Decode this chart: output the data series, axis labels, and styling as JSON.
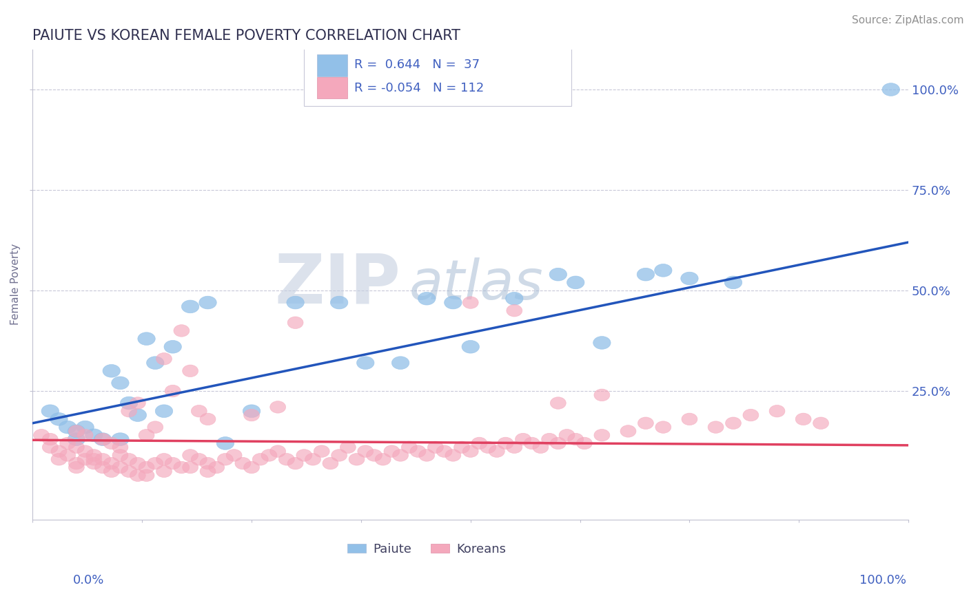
{
  "title": "PAIUTE VS KOREAN FEMALE POVERTY CORRELATION CHART",
  "source": "Source: ZipAtlas.com",
  "ylabel": "Female Poverty",
  "y_tick_labels": [
    "25.0%",
    "50.0%",
    "75.0%",
    "100.0%"
  ],
  "y_tick_values": [
    0.25,
    0.5,
    0.75,
    1.0
  ],
  "xlim": [
    0.0,
    1.0
  ],
  "ylim": [
    -0.07,
    1.1
  ],
  "paiute_R": 0.644,
  "paiute_N": 37,
  "korean_R": -0.054,
  "korean_N": 112,
  "paiute_color": "#92c0e8",
  "korean_color": "#f4a8bc",
  "paiute_line_color": "#2255bb",
  "korean_line_color": "#e04060",
  "background_color": "#ffffff",
  "grid_color": "#c8c8d8",
  "title_color": "#303050",
  "axis_text_color": "#4060c0",
  "watermark_zip_color": "#c0c8e0",
  "watermark_atlas_color": "#a8b8d8",
  "paiute_x": [
    0.02,
    0.03,
    0.04,
    0.05,
    0.05,
    0.06,
    0.07,
    0.08,
    0.09,
    0.1,
    0.1,
    0.11,
    0.12,
    0.13,
    0.14,
    0.15,
    0.16,
    0.18,
    0.2,
    0.22,
    0.25,
    0.3,
    0.35,
    0.38,
    0.42,
    0.45,
    0.48,
    0.5,
    0.55,
    0.6,
    0.62,
    0.65,
    0.7,
    0.72,
    0.75,
    0.8,
    0.98
  ],
  "paiute_y": [
    0.2,
    0.18,
    0.16,
    0.15,
    0.13,
    0.16,
    0.14,
    0.13,
    0.3,
    0.27,
    0.13,
    0.22,
    0.19,
    0.38,
    0.32,
    0.2,
    0.36,
    0.46,
    0.47,
    0.12,
    0.2,
    0.47,
    0.47,
    0.32,
    0.32,
    0.48,
    0.47,
    0.36,
    0.48,
    0.54,
    0.52,
    0.37,
    0.54,
    0.55,
    0.53,
    0.52,
    1.0
  ],
  "korean_x": [
    0.01,
    0.02,
    0.02,
    0.03,
    0.03,
    0.04,
    0.04,
    0.05,
    0.05,
    0.05,
    0.06,
    0.06,
    0.07,
    0.07,
    0.08,
    0.08,
    0.09,
    0.09,
    0.1,
    0.1,
    0.11,
    0.11,
    0.12,
    0.12,
    0.13,
    0.13,
    0.14,
    0.15,
    0.15,
    0.16,
    0.17,
    0.18,
    0.18,
    0.19,
    0.2,
    0.2,
    0.21,
    0.22,
    0.23,
    0.24,
    0.25,
    0.26,
    0.27,
    0.28,
    0.29,
    0.3,
    0.31,
    0.32,
    0.33,
    0.34,
    0.35,
    0.36,
    0.37,
    0.38,
    0.39,
    0.4,
    0.41,
    0.42,
    0.43,
    0.44,
    0.45,
    0.46,
    0.47,
    0.48,
    0.49,
    0.5,
    0.51,
    0.52,
    0.53,
    0.54,
    0.55,
    0.56,
    0.57,
    0.58,
    0.59,
    0.6,
    0.61,
    0.62,
    0.63,
    0.65,
    0.68,
    0.7,
    0.72,
    0.75,
    0.78,
    0.8,
    0.82,
    0.85,
    0.88,
    0.9,
    0.05,
    0.06,
    0.07,
    0.08,
    0.09,
    0.1,
    0.11,
    0.12,
    0.13,
    0.14,
    0.15,
    0.16,
    0.17,
    0.18,
    0.19,
    0.2,
    0.5,
    0.55,
    0.6,
    0.65,
    0.25,
    0.28,
    0.3
  ],
  "korean_y": [
    0.14,
    0.13,
    0.11,
    0.1,
    0.08,
    0.12,
    0.09,
    0.11,
    0.07,
    0.06,
    0.1,
    0.08,
    0.09,
    0.07,
    0.08,
    0.06,
    0.07,
    0.05,
    0.09,
    0.06,
    0.08,
    0.05,
    0.07,
    0.04,
    0.06,
    0.04,
    0.07,
    0.08,
    0.05,
    0.07,
    0.06,
    0.09,
    0.06,
    0.08,
    0.07,
    0.05,
    0.06,
    0.08,
    0.09,
    0.07,
    0.06,
    0.08,
    0.09,
    0.1,
    0.08,
    0.07,
    0.09,
    0.08,
    0.1,
    0.07,
    0.09,
    0.11,
    0.08,
    0.1,
    0.09,
    0.08,
    0.1,
    0.09,
    0.11,
    0.1,
    0.09,
    0.11,
    0.1,
    0.09,
    0.11,
    0.1,
    0.12,
    0.11,
    0.1,
    0.12,
    0.11,
    0.13,
    0.12,
    0.11,
    0.13,
    0.12,
    0.14,
    0.13,
    0.12,
    0.14,
    0.15,
    0.17,
    0.16,
    0.18,
    0.16,
    0.17,
    0.19,
    0.2,
    0.18,
    0.17,
    0.15,
    0.14,
    0.08,
    0.13,
    0.12,
    0.11,
    0.2,
    0.22,
    0.14,
    0.16,
    0.33,
    0.25,
    0.4,
    0.3,
    0.2,
    0.18,
    0.47,
    0.45,
    0.22,
    0.24,
    0.19,
    0.21,
    0.42
  ]
}
